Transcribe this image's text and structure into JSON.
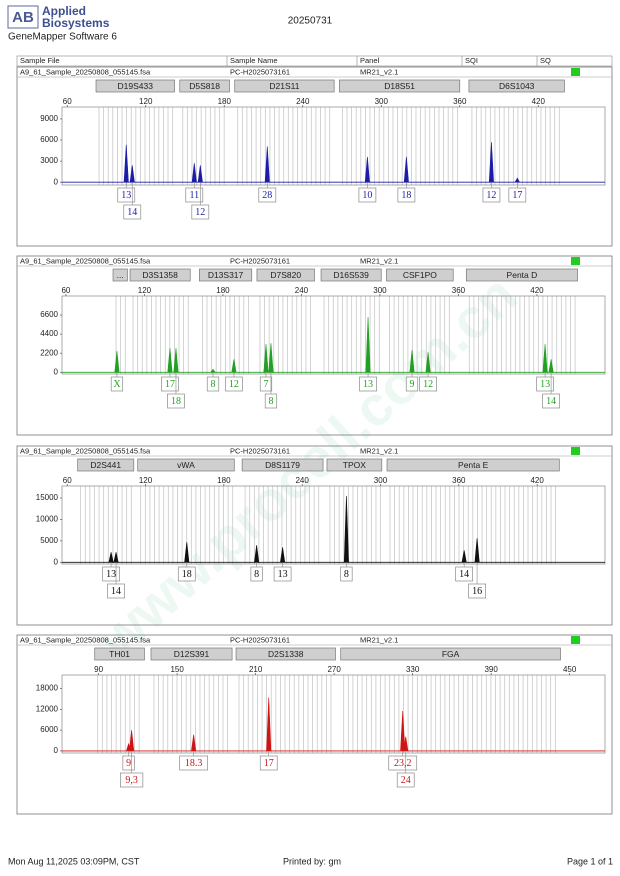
{
  "header": {
    "logo_mark": "AB",
    "logo_line1": "Applied",
    "logo_line2": "Biosystems",
    "software": "GeneMapper Software 6",
    "date": "20250731"
  },
  "columns": [
    "Sample File",
    "Sample Name",
    "Panel",
    "SQI",
    "SQ"
  ],
  "watermark": "www.procell.com.cn",
  "chart_data": [
    {
      "type": "line",
      "sample_file": "A9_61_Sample_20250808_055145.fsa",
      "sample_name": "PC-H2025073161",
      "panel": "MR21_v2.1",
      "color": "#1c1ca8",
      "xlim": [
        56,
        471
      ],
      "xticks": [
        60,
        120,
        180,
        240,
        300,
        360,
        420
      ],
      "ylim": [
        -400,
        10700
      ],
      "yticks": [
        0,
        3000,
        6000,
        9000
      ],
      "markers": [
        {
          "name": "D19S433",
          "range": [
            82,
            142
          ]
        },
        {
          "name": "D5S818",
          "range": [
            146,
            184
          ]
        },
        {
          "name": "D21S11",
          "range": [
            188,
            264
          ]
        },
        {
          "name": "D18S51",
          "range": [
            268,
            360
          ]
        },
        {
          "name": "D6S1043",
          "range": [
            367,
            440
          ]
        }
      ],
      "peaks": [
        {
          "x": 105.1,
          "height": 5300,
          "label": "13"
        },
        {
          "x": 109.7,
          "height": 2400,
          "label": "14"
        },
        {
          "x": 157.1,
          "height": 2700,
          "label": "11"
        },
        {
          "x": 161.7,
          "height": 2400,
          "label": "12"
        },
        {
          "x": 212.9,
          "height": 5100,
          "label": "28"
        },
        {
          "x": 289.4,
          "height": 3600,
          "label": "10"
        },
        {
          "x": 319.2,
          "height": 3600,
          "label": "18"
        },
        {
          "x": 384.2,
          "height": 5700,
          "label": "12"
        },
        {
          "x": 404,
          "height": 570,
          "label": "17"
        }
      ]
    },
    {
      "type": "line",
      "sample_file": "A9_61_Sample_20250808_055145.fsa",
      "sample_name": "PC-H2025073161",
      "panel": "MR21_v2.1",
      "color": "#22a022",
      "xlim": [
        57,
        472
      ],
      "xticks": [
        60,
        120,
        180,
        240,
        300,
        360,
        420
      ],
      "ylim": [
        -200,
        8800
      ],
      "yticks": [
        0,
        2200,
        4400,
        6600
      ],
      "markers": [
        {
          "name": "...",
          "range": [
            96,
            107
          ]
        },
        {
          "name": "D3S1358",
          "range": [
            109,
            155
          ]
        },
        {
          "name": "D13S317",
          "range": [
            162,
            202
          ]
        },
        {
          "name": "D7S820",
          "range": [
            206,
            250
          ]
        },
        {
          "name": "D16S539",
          "range": [
            255,
            301
          ]
        },
        {
          "name": "CSF1PO",
          "range": [
            305,
            356
          ]
        },
        {
          "name": "Penta D",
          "range": [
            366,
            451
          ]
        }
      ],
      "peaks": [
        {
          "x": 99,
          "height": 2430,
          "label": "X"
        },
        {
          "x": 139.5,
          "height": 2780,
          "label": "17"
        },
        {
          "x": 144.1,
          "height": 2780,
          "label": "18"
        },
        {
          "x": 172.4,
          "height": 350,
          "label": "8"
        },
        {
          "x": 188.4,
          "height": 1500,
          "label": "12"
        },
        {
          "x": 212.9,
          "height": 3240,
          "label": "7"
        },
        {
          "x": 216.7,
          "height": 3360,
          "label": "8"
        },
        {
          "x": 290.9,
          "height": 6370,
          "label": "13"
        },
        {
          "x": 324.5,
          "height": 2550,
          "label": "9"
        },
        {
          "x": 336.8,
          "height": 2300,
          "label": "12"
        },
        {
          "x": 426.2,
          "height": 3240,
          "label": "13"
        },
        {
          "x": 430.8,
          "height": 1500,
          "label": "14"
        }
      ]
    },
    {
      "type": "line",
      "sample_file": "A9_61_Sample_20250808_055145.fsa",
      "sample_name": "PC-H2025073161",
      "panel": "MR21_v2.1",
      "color": "#111111",
      "xlim": [
        56,
        472
      ],
      "xticks": [
        60,
        120,
        180,
        240,
        300,
        360,
        420
      ],
      "ylim": [
        -400,
        17800
      ],
      "yticks": [
        0,
        5000,
        10000,
        15000
      ],
      "markers": [
        {
          "name": "D2S441",
          "range": [
            68,
            111
          ]
        },
        {
          "name": "vWA",
          "range": [
            114,
            188
          ]
        },
        {
          "name": "D8S1179",
          "range": [
            194,
            256
          ]
        },
        {
          "name": "TPOX",
          "range": [
            259,
            301
          ]
        },
        {
          "name": "Penta E",
          "range": [
            305,
            437
          ]
        }
      ],
      "peaks": [
        {
          "x": 93.6,
          "height": 2350,
          "label": "13"
        },
        {
          "x": 97.4,
          "height": 2350,
          "label": "14"
        },
        {
          "x": 151.6,
          "height": 4700,
          "label": "18"
        },
        {
          "x": 205.1,
          "height": 4000,
          "label": "8"
        },
        {
          "x": 225,
          "height": 3500,
          "label": "13"
        },
        {
          "x": 273.9,
          "height": 15500,
          "label": "8"
        },
        {
          "x": 364.1,
          "height": 2800,
          "label": "14"
        },
        {
          "x": 374,
          "height": 5600,
          "label": "16"
        }
      ]
    },
    {
      "type": "line",
      "sample_file": "A9_61_Sample_20250808_055145.fsa",
      "sample_name": "PC-H2025073161",
      "panel": "MR21_v2.1",
      "color": "#d01414",
      "xlim": [
        62,
        477
      ],
      "xticks": [
        90,
        150,
        210,
        270,
        330,
        390,
        450
      ],
      "ylim": [
        -600,
        21900
      ],
      "yticks": [
        0,
        6000,
        12000,
        18000
      ],
      "markers": [
        {
          "name": "TH01",
          "range": [
            87,
            125
          ]
        },
        {
          "name": "D12S391",
          "range": [
            130,
            192
          ]
        },
        {
          "name": "D2S1338",
          "range": [
            195,
            271
          ]
        },
        {
          "name": "FGA",
          "range": [
            275,
            443
          ]
        }
      ],
      "peaks": [
        {
          "x": 112.9,
          "height": 2070,
          "label": "9"
        },
        {
          "x": 115.2,
          "height": 6000,
          "label": "9,3"
        },
        {
          "x": 162.6,
          "height": 4700,
          "label": "18.3"
        },
        {
          "x": 220,
          "height": 15400,
          "label": "17"
        },
        {
          "x": 322.4,
          "height": 11500,
          "label": "23,2"
        },
        {
          "x": 324.7,
          "height": 4100,
          "label": "24"
        }
      ]
    }
  ],
  "footer": {
    "printed_at": "Mon Aug 11,2025 03:09PM, CST",
    "printed_by": "Printed by: gm",
    "page": "Page 1 of 1"
  }
}
